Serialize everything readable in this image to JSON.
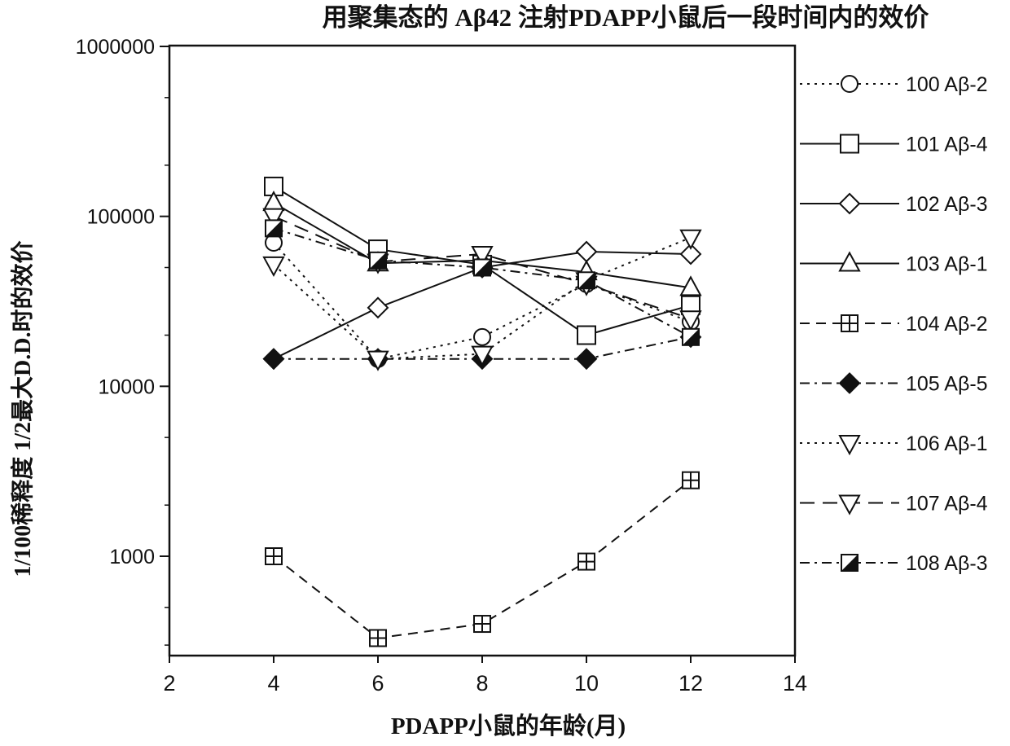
{
  "chart_data": {
    "type": "line",
    "title": "用聚集态的 Aβ42 注射PDAPP小鼠后一段时间内的效价",
    "xlabel": "PDAPP小鼠的年龄(月)",
    "ylabel": "1/100稀释度 1/2最大D.D.时的效价",
    "x_scale": "linear",
    "y_scale": "log",
    "xlim": [
      2,
      14
    ],
    "ylim": [
      300,
      1000000
    ],
    "x_ticks": [
      2,
      4,
      6,
      8,
      10,
      12,
      14
    ],
    "y_ticks": [
      1000,
      10000,
      100000,
      1000000
    ],
    "x_tick_labels": [
      "2",
      "4",
      "6",
      "8",
      "10",
      "12",
      "14"
    ],
    "y_tick_labels": [
      "1000",
      "10000",
      "100000",
      "1000000"
    ],
    "grid": false,
    "legend_position": "right",
    "series": [
      {
        "name": "100 Aβ-2",
        "dash": "dotted",
        "marker": "circle",
        "points": [
          [
            4,
            70000
          ],
          [
            6,
            14500
          ],
          [
            8,
            19500
          ],
          [
            10,
            40000
          ],
          [
            12,
            24000
          ]
        ]
      },
      {
        "name": "101 Aβ-4",
        "dash": "solid",
        "marker": "square",
        "points": [
          [
            4,
            150000
          ],
          [
            6,
            64000
          ],
          [
            8,
            52000
          ],
          [
            10,
            20000
          ],
          [
            12,
            30000
          ]
        ]
      },
      {
        "name": "102 Aβ-3",
        "dash": "solid",
        "marker": "diamond",
        "points": [
          [
            4,
            14500
          ],
          [
            6,
            29000
          ],
          [
            8,
            50000
          ],
          [
            10,
            62000
          ],
          [
            12,
            60000
          ]
        ]
      },
      {
        "name": "103 Aβ-1",
        "dash": "solid",
        "marker": "triangle-up",
        "points": [
          [
            4,
            120000
          ],
          [
            6,
            53000
          ],
          [
            8,
            55000
          ],
          [
            10,
            47000
          ],
          [
            12,
            38000
          ]
        ]
      },
      {
        "name": "104 Aβ-2",
        "dash": "dashed",
        "marker": "boxed-plus",
        "points": [
          [
            4,
            1000
          ],
          [
            6,
            330
          ],
          [
            8,
            400
          ],
          [
            10,
            930
          ],
          [
            12,
            2800
          ]
        ]
      },
      {
        "name": "105 Aβ-5",
        "dash": "dashdot",
        "marker": "filled-diamond",
        "points": [
          [
            4,
            14500
          ],
          [
            6,
            14500
          ],
          [
            8,
            14500
          ],
          [
            10,
            14500
          ],
          [
            12,
            19500
          ]
        ]
      },
      {
        "name": "106 Aβ-1",
        "dash": "dotted",
        "marker": "triangle-down",
        "points": [
          [
            4,
            52000
          ],
          [
            6,
            14500
          ],
          [
            8,
            15500
          ],
          [
            10,
            42000
          ],
          [
            12,
            75000
          ]
        ]
      },
      {
        "name": "107 Aβ-4",
        "dash": "longdash",
        "marker": "triangle-down",
        "points": [
          [
            4,
            100000
          ],
          [
            6,
            54000
          ],
          [
            8,
            60000
          ],
          [
            10,
            40000
          ],
          [
            12,
            25000
          ]
        ]
      },
      {
        "name": "108 Aβ-3",
        "dash": "dashdot",
        "marker": "half-square",
        "points": [
          [
            4,
            85000
          ],
          [
            6,
            55000
          ],
          [
            8,
            50000
          ],
          [
            10,
            42000
          ],
          [
            12,
            19500
          ]
        ]
      }
    ]
  }
}
